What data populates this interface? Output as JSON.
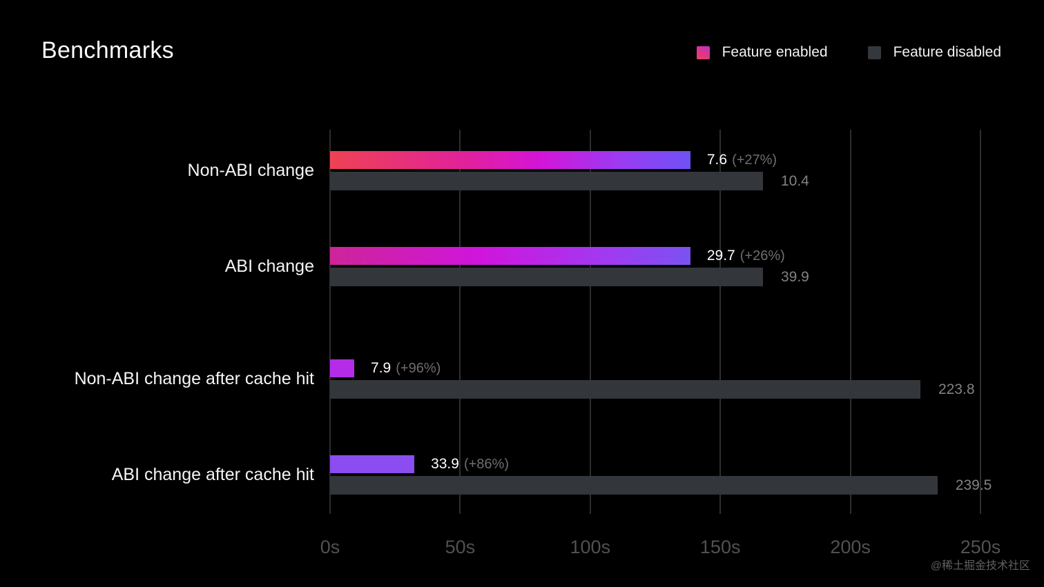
{
  "title": "Benchmarks",
  "legend": {
    "enabled_label": "Feature enabled",
    "disabled_label": "Feature disabled",
    "enabled_swatch_gradient": [
      "#c62ec4",
      "#ee4058"
    ],
    "disabled_swatch_color": "#34373b"
  },
  "watermark": "@稀土掘金技术社区",
  "colors": {
    "background": "#000000",
    "grid": "#2e2e2f",
    "bar_disabled": "#33363a",
    "value_text": "#ffffff",
    "pct_text": "#6e6e6e",
    "disabled_value_text": "#828282",
    "tick_text": "#515151",
    "watermark_text": "#606060",
    "bar_enabled_gradients": [
      [
        "#ee4253 0%",
        "#e1219c 38%",
        "#d414d6 58%",
        "#9c3bf2 80%",
        "#6f51f4 100%"
      ],
      [
        "#ce2598 0%",
        "#cf15dd 42%",
        "#a338f0 75%",
        "#7b52f2 100%"
      ],
      [
        "#b42ce8 0%",
        "#b42ce8 100%"
      ],
      [
        "#8b4cf0 0%",
        "#8b4cf0 100%"
      ]
    ]
  },
  "chart_data": {
    "type": "bar",
    "orientation": "horizontal",
    "title": "Benchmarks",
    "categories": [
      "Non-ABI change",
      "ABI change",
      "Non-ABI change after cache hit",
      "ABI change after cache hit"
    ],
    "series": [
      {
        "name": "Feature enabled",
        "values": [
          7.6,
          29.7,
          7.9,
          33.9
        ],
        "pct_vs_disabled": [
          "+27%",
          "+26%",
          "+96%",
          "+86%"
        ]
      },
      {
        "name": "Feature disabled",
        "values": [
          10.4,
          39.9,
          223.8,
          239.5
        ]
      }
    ],
    "x_ticks": [
      "0s",
      "50s",
      "100s",
      "150s",
      "200s",
      "250s"
    ],
    "xlim": [
      0,
      250
    ],
    "unit": "s",
    "legend_position": "top-right",
    "grid": "vertical",
    "display_bar_lengths_s": {
      "enabled": [
        138.5,
        138.5,
        9.3,
        32.4
      ],
      "disabled": [
        166.4,
        166.4,
        226.9,
        233.5
      ]
    }
  },
  "rows": [
    {
      "label": "Non-ABI change",
      "enabled_value": "7.6",
      "enabled_pct": "(+27%)",
      "disabled_value": "10.4",
      "enabled_len_s": 138.5,
      "disabled_len_s": 166.4
    },
    {
      "label": "ABI change",
      "enabled_value": "29.7",
      "enabled_pct": "(+26%)",
      "disabled_value": "39.9",
      "enabled_len_s": 138.5,
      "disabled_len_s": 166.4
    },
    {
      "label": "Non-ABI change after cache hit",
      "enabled_value": "7.9",
      "enabled_pct": "(+96%)",
      "disabled_value": "223.8",
      "enabled_len_s": 9.3,
      "disabled_len_s": 226.9
    },
    {
      "label": "ABI change after cache hit",
      "enabled_value": "33.9",
      "enabled_pct": "(+86%)",
      "disabled_value": "239.5",
      "enabled_len_s": 32.4,
      "disabled_len_s": 233.5
    }
  ]
}
